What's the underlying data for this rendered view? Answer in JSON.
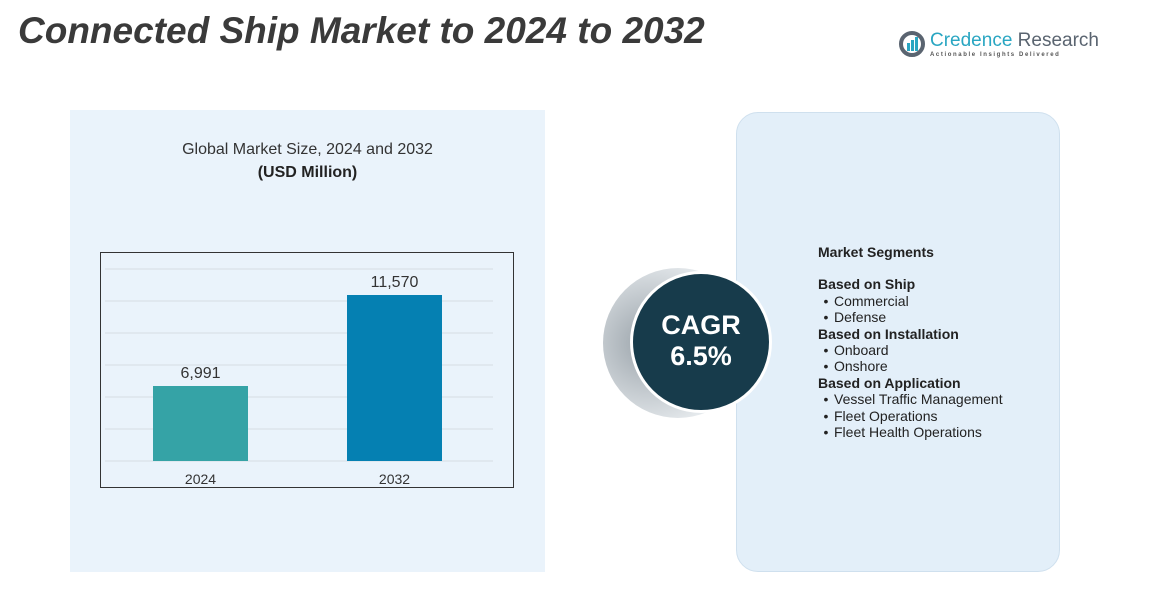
{
  "title": "Connected Ship Market to 2024 to 2032",
  "logo": {
    "name_a": "Credence",
    "name_b": " Research",
    "tagline": "Actionable Insights Delivered"
  },
  "chart_data": {
    "type": "bar",
    "title": "Global Market Size,  2024 and 2032",
    "subtitle": "(USD Million)",
    "categories": [
      "2024",
      "2032"
    ],
    "values": [
      6991,
      11570
    ],
    "data_labels": [
      "6,991",
      "11,570"
    ],
    "colors": [
      "#35a3a6",
      "#0580b2"
    ],
    "grid": true
  },
  "cagr": {
    "label": "CAGR",
    "value": "6.5%"
  },
  "segments": {
    "heading": "Market Segments",
    "groups": [
      {
        "title": "Based on Ship",
        "items": [
          "Commercial",
          "Defense"
        ]
      },
      {
        "title": "Based on Installation",
        "items": [
          "Onboard",
          "Onshore"
        ]
      },
      {
        "title": "Based on Application",
        "items": [
          "Vessel Traffic Management",
          "Fleet Operations",
          "Fleet Health Operations"
        ]
      }
    ]
  }
}
